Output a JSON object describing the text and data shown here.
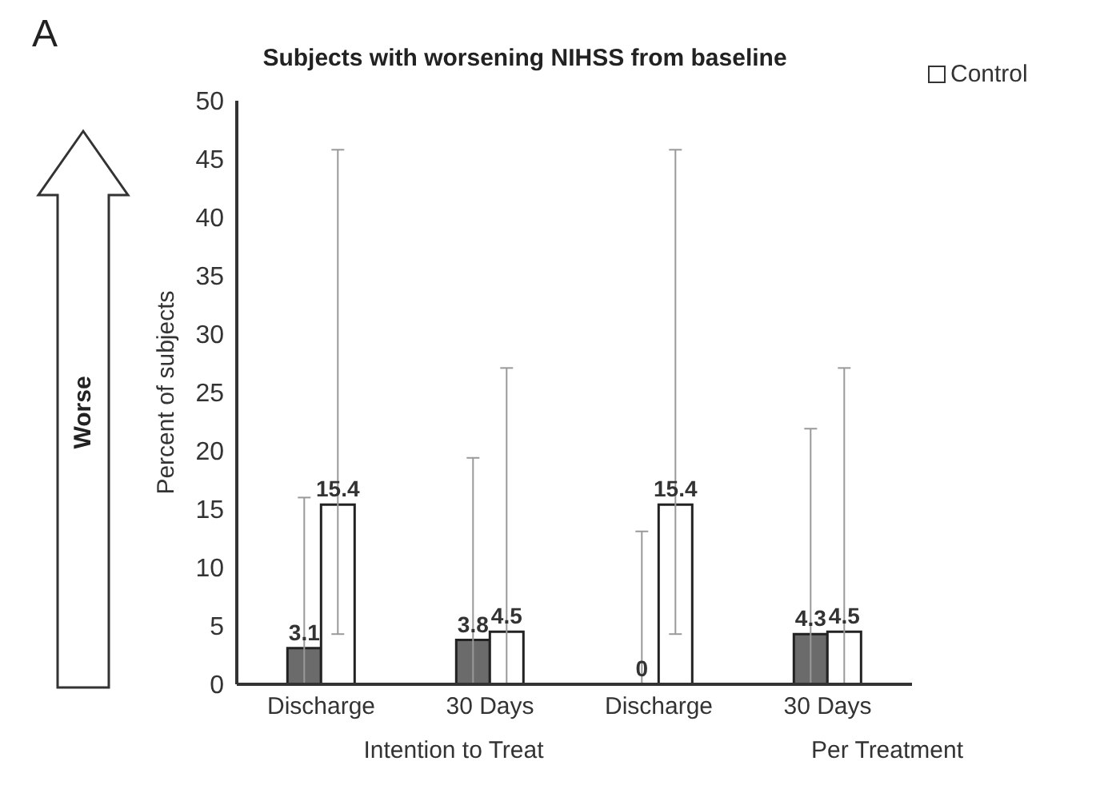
{
  "chart_data": {
    "type": "bar",
    "title": "Subjects with worsening NIHSS from baseline",
    "ylabel": "Percent of subjects",
    "categories": [
      "Discharge",
      "30 Days",
      "Discharge",
      "30 Days"
    ],
    "series": [
      {
        "color": "#6b6b6b",
        "values": [
          3.1,
          3.8,
          0,
          4.3
        ],
        "errors": [
          [
            0,
            16.0
          ],
          [
            0,
            19.4
          ],
          [
            0,
            13.1
          ],
          [
            0,
            21.9
          ]
        ]
      },
      {
        "name": "Control",
        "color": "#ffffff",
        "values": [
          15.4,
          4.5,
          15.4,
          4.5
        ],
        "errors": [
          [
            4.3,
            45.8
          ],
          [
            0,
            27.1
          ],
          [
            4.3,
            45.8
          ],
          [
            0,
            27.1
          ]
        ]
      }
    ],
    "ylim": [
      0,
      50
    ],
    "yticks": [
      0,
      5,
      10,
      15,
      20,
      25,
      30,
      35,
      40,
      45,
      50
    ],
    "data_labels": true,
    "legend": "top right",
    "grid": false,
    "annotations": [
      "A",
      "Worse",
      "Intention to Treat",
      "Per Treatment"
    ]
  }
}
